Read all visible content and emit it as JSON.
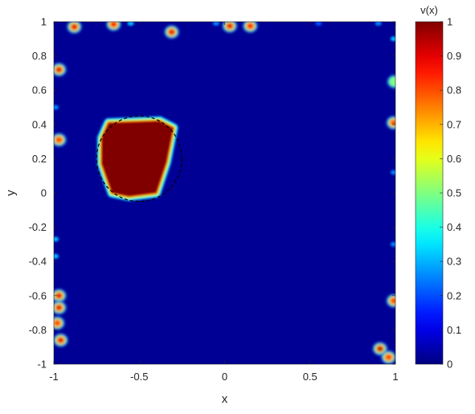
{
  "chart_data": {
    "type": "heatmap",
    "title": "",
    "xlabel": "x",
    "ylabel": "y",
    "xlim": [
      -1,
      1
    ],
    "ylim": [
      -1,
      1
    ],
    "grid": false,
    "x_ticks": [
      "-1",
      "-0.5",
      "0",
      "0.5",
      "1"
    ],
    "y_ticks": [
      "-1",
      "-0.8",
      "-0.6",
      "-0.4",
      "-0.2",
      "0",
      "0.2",
      "0.4",
      "0.6",
      "0.8",
      "1"
    ],
    "colormap": "jet",
    "colorbar": {
      "label": "v(x)",
      "range": [
        0,
        1
      ],
      "ticks": [
        "0",
        "0.1",
        "0.2",
        "0.3",
        "0.4",
        "0.5",
        "0.6",
        "0.7",
        "0.8",
        "0.9",
        "1"
      ]
    },
    "background_value": 0.02,
    "main_region": {
      "value": 1,
      "polygon": [
        [
          -0.68,
          0.41
        ],
        [
          -0.38,
          0.42
        ],
        [
          -0.3,
          0.38
        ],
        [
          -0.34,
          0.18
        ],
        [
          -0.4,
          0.0
        ],
        [
          -0.56,
          -0.02
        ],
        [
          -0.66,
          0.0
        ],
        [
          -0.72,
          0.17
        ],
        [
          -0.72,
          0.32
        ]
      ]
    },
    "reference_boundary": {
      "style": "dashed",
      "color": "#000000",
      "center": [
        -0.5,
        0.2
      ],
      "radius": 0.25
    },
    "edge_spots": [
      {
        "x": -0.88,
        "y": 0.97,
        "value": 0.9
      },
      {
        "x": -0.65,
        "y": 0.985,
        "value": 0.85
      },
      {
        "x": -0.31,
        "y": 0.94,
        "value": 0.9
      },
      {
        "x": 0.03,
        "y": 0.975,
        "value": 0.9
      },
      {
        "x": 0.15,
        "y": 0.975,
        "value": 0.85
      },
      {
        "x": -0.97,
        "y": 0.72,
        "value": 0.9
      },
      {
        "x": -0.97,
        "y": 0.31,
        "value": 0.8
      },
      {
        "x": 0.99,
        "y": 0.41,
        "value": 0.8
      },
      {
        "x": 0.995,
        "y": 0.65,
        "value": 0.5
      },
      {
        "x": -0.97,
        "y": -0.6,
        "value": 0.9
      },
      {
        "x": -0.97,
        "y": -0.67,
        "value": 0.9
      },
      {
        "x": -0.98,
        "y": -0.76,
        "value": 0.8
      },
      {
        "x": -0.96,
        "y": -0.86,
        "value": 0.9
      },
      {
        "x": 0.99,
        "y": -0.63,
        "value": 0.8
      },
      {
        "x": 0.91,
        "y": -0.91,
        "value": 0.95
      },
      {
        "x": 0.96,
        "y": -0.96,
        "value": 0.8
      }
    ],
    "faint_spots": [
      {
        "x": -0.55,
        "y": 0.99,
        "value": 0.3
      },
      {
        "x": -0.05,
        "y": 0.99,
        "value": 0.25
      },
      {
        "x": 0.55,
        "y": 0.99,
        "value": 0.2
      },
      {
        "x": 0.9,
        "y": 0.99,
        "value": 0.25
      },
      {
        "x": -0.99,
        "y": -0.27,
        "value": 0.3
      },
      {
        "x": -0.99,
        "y": -0.37,
        "value": 0.3
      },
      {
        "x": 0.99,
        "y": 0.12,
        "value": 0.25
      },
      {
        "x": 0.99,
        "y": -0.3,
        "value": 0.25
      },
      {
        "x": 0.99,
        "y": 0.9,
        "value": 0.3
      },
      {
        "x": -0.99,
        "y": 0.5,
        "value": 0.25
      }
    ]
  }
}
